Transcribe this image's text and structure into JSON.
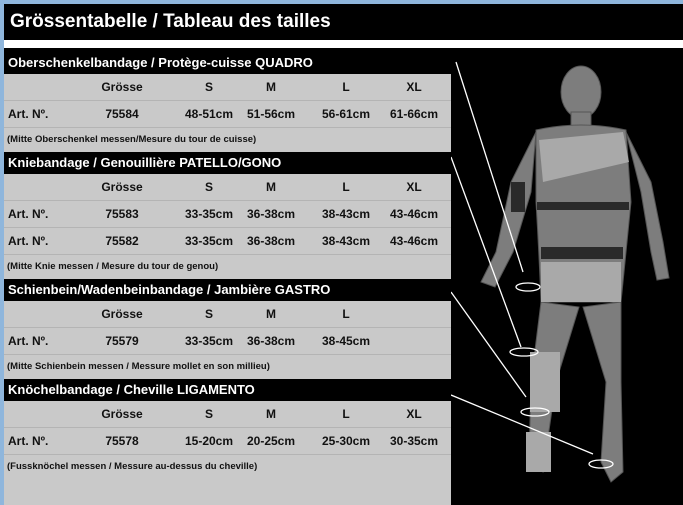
{
  "title": "Grössentabelle / Tableau des tailles",
  "sections": [
    {
      "heading": "Oberschenkelbandage / Protège-cuisse QUADRO",
      "size_header": [
        "Grösse",
        "S",
        "M",
        "L",
        "XL"
      ],
      "rows": [
        [
          "Art. Nº.",
          "75584",
          "48-51cm",
          "51-56cm",
          "56-61cm",
          "61-66cm"
        ]
      ],
      "note": "(Mitte Oberschenkel messen/Mesure du tour de cuisse)"
    },
    {
      "heading": "Kniebandage / Genouillière PATELLO/GONO",
      "size_header": [
        "Grösse",
        "S",
        "M",
        "L",
        "XL"
      ],
      "rows": [
        [
          "Art. Nº.",
          "75583",
          "33-35cm",
          "36-38cm",
          "38-43cm",
          "43-46cm"
        ],
        [
          "Art. Nº.",
          "75582",
          "33-35cm",
          "36-38cm",
          "38-43cm",
          "43-46cm"
        ]
      ],
      "note": "(Mitte Knie messen / Mesure du tour de genou)"
    },
    {
      "heading": "Schienbein/Wadenbeinbandage / Jambière GASTRO",
      "size_header": [
        "Grösse",
        "S",
        "M",
        "L"
      ],
      "rows": [
        [
          "Art. Nº.",
          "75579",
          "33-35cm",
          "36-38cm",
          "38-45cm"
        ]
      ],
      "note": "(Mitte Schienbein messen / Messure mollet en son millieu)"
    },
    {
      "heading": "Knöchelbandage / Cheville LIGAMENTO",
      "size_header": [
        "Grösse",
        "S",
        "M",
        "L",
        "XL"
      ],
      "rows": [
        [
          "Art. Nº.",
          "75578",
          "15-20cm",
          "20-25cm",
          "25-30cm",
          "30-35cm"
        ]
      ],
      "note": "(Fussknöchel messen / Messure au-dessus du cheville)"
    }
  ]
}
